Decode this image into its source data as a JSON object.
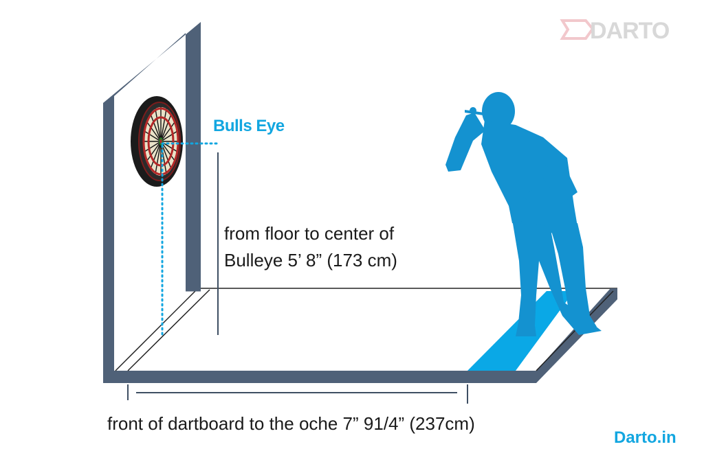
{
  "colors": {
    "accent": "#12a6e0",
    "player": "#1492d0",
    "wall": "#4f6178",
    "oche": "#0aa8e6",
    "line": "#222222",
    "logo": "#d8d8d8",
    "logo_accent": "#f2c8cc"
  },
  "labels": {
    "bulls_eye": "Bulls Eye",
    "height_line_1": "from  floor to center of",
    "height_line_2": "Bulleye 5’ 8” (173 cm)",
    "distance": "front of dartboard to the oche 7” 91/4” (237cm)",
    "site": "Darto.in"
  },
  "logo": {
    "text": "DARTO"
  },
  "icons": {
    "dartboard": "dartboard-icon",
    "player": "dart-player-silhouette",
    "logo": "darto-logo"
  }
}
